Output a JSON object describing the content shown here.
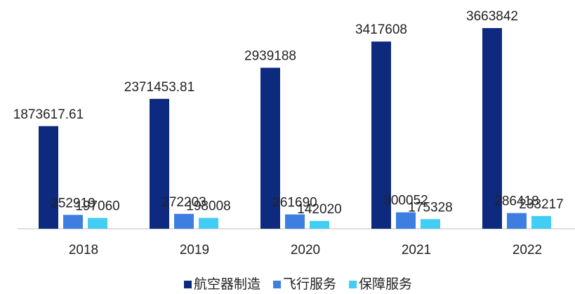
{
  "chart_data": {
    "type": "bar",
    "categories": [
      "2018",
      "2019",
      "2020",
      "2021",
      "2022"
    ],
    "series": [
      {
        "name": "航空器制造",
        "color": "#0e2a7e",
        "values": [
          1873617.61,
          2371453.81,
          2939188,
          3417608,
          3663842
        ]
      },
      {
        "name": "飞行服务",
        "color": "#3d7ee0",
        "values": [
          252919,
          272203,
          261690,
          300052,
          286418
        ]
      },
      {
        "name": "保障服务",
        "color": "#41cdf4",
        "values": [
          197060,
          198008,
          142020,
          175328,
          233217
        ]
      }
    ]
  }
}
